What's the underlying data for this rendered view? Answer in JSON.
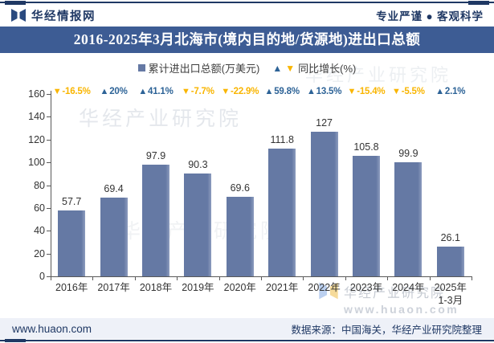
{
  "header": {
    "brand": "华经情报网",
    "tagline": "专业严谨 ● 客观科学",
    "title": "2016-2025年3月北海市(境内目的地/货源地)进出口总额"
  },
  "legend": {
    "bar_label": "累计进出口总额(万美元)",
    "growth_label": "同比增长(%)"
  },
  "chart_data": {
    "type": "bar",
    "title": "2016-2025年3月北海市(境内目的地/货源地)进出口总额",
    "categories": [
      "2016年",
      "2017年",
      "2018年",
      "2019年",
      "2020年",
      "2021年",
      "2022年",
      "2023年",
      "2024年",
      "2025年"
    ],
    "last_category_sublabel": "1-3月",
    "series": [
      {
        "name": "累计进出口总额(万美元)",
        "type": "bar",
        "values": [
          57.7,
          69.4,
          97.9,
          90.3,
          69.6,
          111.8,
          127,
          105.8,
          99.9,
          26.1
        ]
      },
      {
        "name": "同比增长(%)",
        "type": "labels",
        "values": [
          -16.5,
          20,
          41.1,
          -7.7,
          -22.9,
          59.8,
          13.5,
          -15.4,
          -5.5,
          2.1
        ],
        "labels": [
          "-16.5%",
          "20%",
          "41.1%",
          "-7.7%",
          "-22.9%",
          "59.8%",
          "13.5%",
          "-15.4%",
          "-5.5%",
          "2.1%"
        ]
      }
    ],
    "ylim": [
      0,
      160
    ],
    "ytick_step": 20,
    "grid": false,
    "legend_position": "top"
  },
  "icons": {
    "up_triangle": "▲",
    "down_triangle": "▼",
    "legend_square": "■",
    "brand_logo": "open-book-logo"
  },
  "colors": {
    "accent_navy": "#1F3864",
    "title_bg": "#3D5C94",
    "bar": "#6579A4",
    "up_blue": "#2D6397",
    "down_orange": "#F9B500",
    "axis": "#595959",
    "footer_bg": "#EEF1F8"
  },
  "watermark": {
    "name": "华经产业研究院",
    "site": "www.huaon.com"
  },
  "footer": {
    "site": "www.huaon.com",
    "source": "数据来源：中国海关，华经产业研究院整理"
  }
}
